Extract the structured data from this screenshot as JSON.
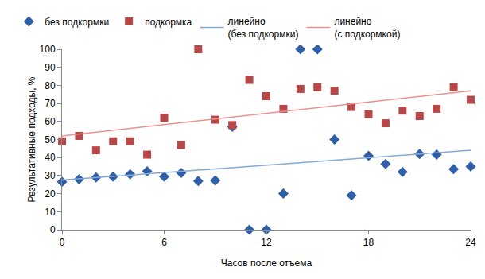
{
  "chart_data": {
    "type": "scatter",
    "x_label": "Часов после отъема",
    "y_label": "Результативные подходы, %",
    "xlim": [
      0,
      24
    ],
    "xticks": [
      0,
      6,
      12,
      18,
      24
    ],
    "ylim": [
      0,
      100
    ],
    "yticks": [
      0,
      10,
      20,
      30,
      40,
      50,
      60,
      70,
      80,
      90,
      100
    ],
    "grid": false,
    "legend": "top",
    "series": [
      {
        "name": "без подкормки",
        "type": "scatter",
        "marker": "diamond",
        "color": "#2f5fa8",
        "x": [
          0,
          1,
          2,
          3,
          4,
          5,
          6,
          7,
          8,
          9,
          10,
          11,
          12,
          13,
          14,
          15,
          16,
          17,
          18,
          19,
          20,
          21,
          22,
          23,
          24
        ],
        "values": [
          26.5,
          28,
          29,
          29.4,
          30.7,
          32.4,
          29.4,
          31.5,
          27,
          27.3,
          57,
          0,
          0,
          20,
          100,
          100,
          50,
          19,
          41,
          36.5,
          32,
          42,
          41.6,
          33.6,
          35
        ]
      },
      {
        "name": "подкормка",
        "type": "scatter",
        "marker": "square",
        "color": "#b84848",
        "x": [
          0,
          1,
          2,
          3,
          4,
          5,
          6,
          7,
          8,
          9,
          10,
          11,
          12,
          13,
          14,
          15,
          16,
          17,
          18,
          19,
          20,
          21,
          22,
          23,
          24
        ],
        "values": [
          49,
          52,
          44,
          49,
          49,
          41.6,
          62,
          47,
          100,
          61,
          58,
          83,
          74,
          67,
          78,
          79,
          77,
          68,
          64,
          59,
          66,
          63,
          67,
          79,
          72
        ]
      },
      {
        "name": "линейно\n(без подкормки)",
        "type": "line",
        "line_style": "solid",
        "color": "#86a9d6",
        "x": [
          0,
          24
        ],
        "values": [
          27.5,
          44
        ]
      },
      {
        "name": "линейно\n(с подкормкой)",
        "type": "line",
        "line_style": "solid",
        "color": "#e8928c",
        "x": [
          0,
          24
        ],
        "values": [
          52,
          77
        ]
      }
    ]
  }
}
